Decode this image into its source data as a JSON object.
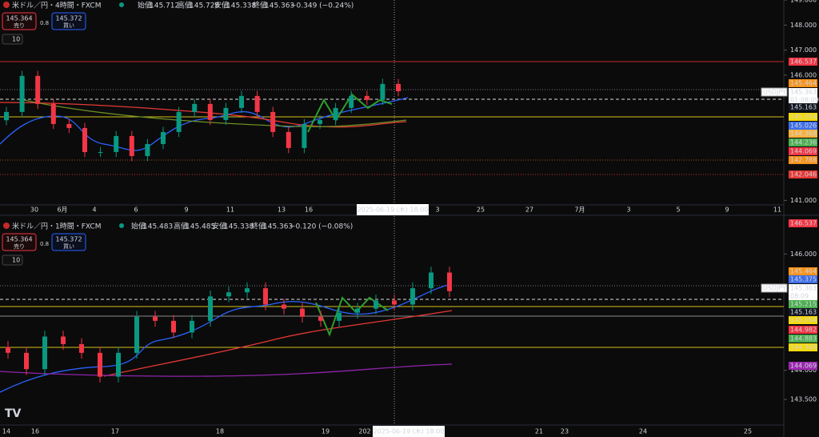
{
  "panels": [
    {
      "header": {
        "symbol": "米ドル／円・4時間・FXCM",
        "fields": [
          {
            "label": "始値",
            "value": "145.712"
          },
          {
            "label": "高値",
            "value": "145.728"
          },
          {
            "label": "安値",
            "value": "145.338"
          },
          {
            "label": "終値",
            "value": "145.363"
          }
        ],
        "change": "−0.349 (−0.24%)"
      },
      "sell": {
        "price": "145.364",
        "label": "売り"
      },
      "spread": "0.8",
      "buy": {
        "price": "145.372",
        "label": "買い"
      },
      "lots": "10",
      "ylim": [
        140.82,
        149.0
      ],
      "yticks": [
        {
          "value": 149,
          "label": "149.000"
        },
        {
          "value": 148,
          "label": "148.000"
        },
        {
          "value": 147,
          "label": "147.000"
        },
        {
          "value": 146,
          "label": "146.000"
        },
        {
          "value": 141,
          "label": "141.000"
        }
      ],
      "price_labels": [
        {
          "label": "146.537",
          "color": "#f23645"
        },
        {
          "label": "145.464",
          "color": "#f7931a"
        },
        {
          "label": "USDJPY",
          "color": "#ffffff"
        },
        {
          "label": "145.363",
          "color": "#ffffff"
        },
        {
          "label": "01:08:09",
          "color": "#ffffff"
        },
        {
          "label": "145.163",
          "color": "#131722"
        },
        {
          "label": "145.054",
          "color": "#f5d90a"
        },
        {
          "label": "145.026",
          "color": "#3d6ee8"
        },
        {
          "label": "144.368",
          "color": "#f7b23b"
        },
        {
          "label": "144.236",
          "color": "#4caf50"
        },
        {
          "label": "144.069",
          "color": "#f23645"
        },
        {
          "label": "142.788",
          "color": "#f7931a"
        },
        {
          "label": "142.046",
          "color": "#e53935"
        }
      ],
      "time_labels": [
        "30",
        "6月",
        "4",
        "6",
        "9",
        "11",
        "13",
        "16",
        "3",
        "25",
        "27",
        "7月",
        "3",
        "5",
        "9",
        "11"
      ],
      "crosshair": "2025-06-19 (木)   18:00",
      "candles": {
        "open": [
          144.2,
          144.53,
          145.97,
          144.85,
          144.05,
          143.89,
          142.93,
          142.93,
          143.57,
          142.77,
          143.25,
          143.73,
          144.53,
          144.85,
          144.21,
          144.69,
          145.17,
          144.53,
          143.73,
          143.09,
          144.05,
          144.21,
          144.69,
          145.17,
          145.01,
          145.65
        ],
        "high": [
          144.73,
          146.17,
          146.17,
          145.05,
          144.25,
          144.09,
          143.13,
          143.77,
          143.77,
          143.45,
          143.93,
          144.73,
          145.05,
          145.05,
          144.89,
          145.37,
          145.37,
          144.73,
          143.93,
          144.25,
          144.41,
          144.89,
          145.37,
          145.37,
          145.85,
          145.85
        ],
        "low": [
          144.0,
          144.33,
          144.65,
          143.85,
          143.69,
          142.73,
          142.73,
          142.73,
          142.57,
          142.57,
          143.05,
          143.53,
          144.33,
          144.01,
          144.01,
          144.49,
          144.33,
          143.53,
          142.89,
          142.89,
          143.85,
          144.01,
          144.49,
          144.81,
          144.81,
          145.16
        ],
        "close": [
          144.53,
          145.97,
          144.85,
          144.05,
          143.89,
          142.93,
          142.93,
          143.57,
          142.77,
          143.25,
          143.73,
          144.53,
          144.85,
          144.21,
          144.69,
          145.17,
          144.53,
          143.73,
          143.09,
          144.05,
          144.21,
          144.69,
          145.17,
          145.01,
          145.65,
          145.36
        ]
      }
    },
    {
      "header": {
        "symbol": "米ドル／円・1時間・FXCM",
        "fields": [
          {
            "label": "始値",
            "value": "145.483"
          },
          {
            "label": "高値",
            "value": "145.485"
          },
          {
            "label": "安値",
            "value": "145.338"
          },
          {
            "label": "終値",
            "value": "145.363"
          }
        ],
        "change": "−0.120 (−0.08%)"
      },
      "sell": {
        "price": "145.364",
        "label": "売り"
      },
      "spread": "0.8",
      "buy": {
        "price": "145.372",
        "label": "買い"
      },
      "lots": "10",
      "ylim": [
        143.06,
        146.65
      ],
      "yticks": [
        {
          "value": 146,
          "label": "146.000"
        },
        {
          "value": 144,
          "label": "144.000"
        },
        {
          "value": 143.5,
          "label": "143.500"
        }
      ],
      "price_labels": [
        {
          "label": "146.537",
          "color": "#f23645"
        },
        {
          "label": "145.464",
          "color": "#f7931a"
        },
        {
          "label": "145.375",
          "color": "#3d6ee8"
        },
        {
          "label": "USDJPY",
          "color": "#ffffff"
        },
        {
          "label": "145.363",
          "color": "#ffffff"
        },
        {
          "label": "08:09",
          "color": "#ffffff"
        },
        {
          "label": "145.215",
          "color": "#4caf50"
        },
        {
          "label": "145.163",
          "color": "#131722"
        },
        {
          "label": "145.054",
          "color": "#f5d90a"
        },
        {
          "label": "144.982",
          "color": "#f23645"
        },
        {
          "label": "144.883",
          "color": "#4caf50"
        },
        {
          "label": "144.368",
          "color": "#f5d90a"
        },
        {
          "label": "144.069",
          "color": "#9c27b0"
        }
      ],
      "time_labels": [
        "14",
        "16",
        "17",
        "18",
        "19",
        "202",
        "21",
        "23",
        "24",
        "25"
      ],
      "crosshair": "2025-06-19 (木)   18:00",
      "candles": {
        "open": [
          144.4,
          144.3,
          144.02,
          144.58,
          144.45,
          144.3,
          143.89,
          144.3,
          144.92,
          144.85,
          144.65,
          144.85,
          145.27,
          145.34,
          145.41,
          145.13,
          145.06,
          144.92,
          144.85,
          144.99,
          145.06,
          145.2,
          145.13,
          145.41,
          145.68
        ],
        "high": [
          144.5,
          144.4,
          144.68,
          144.68,
          144.55,
          144.4,
          144.4,
          145.02,
          145.02,
          144.95,
          144.95,
          145.37,
          145.44,
          145.51,
          145.51,
          145.23,
          145.16,
          145.02,
          145.09,
          145.16,
          145.3,
          145.3,
          145.51,
          145.78,
          145.78
        ],
        "low": [
          144.2,
          143.92,
          143.92,
          144.35,
          144.2,
          143.79,
          143.79,
          144.2,
          144.75,
          144.55,
          144.55,
          144.75,
          145.17,
          145.24,
          145.03,
          144.96,
          144.82,
          144.75,
          144.75,
          144.89,
          144.96,
          145.03,
          145.03,
          145.31,
          145.26
        ],
        "close": [
          144.3,
          144.02,
          144.58,
          144.45,
          144.3,
          143.89,
          144.3,
          144.92,
          144.85,
          144.65,
          144.85,
          145.27,
          145.34,
          145.41,
          145.13,
          145.06,
          144.92,
          144.85,
          144.99,
          145.06,
          145.2,
          145.13,
          145.41,
          145.68,
          145.36
        ]
      }
    }
  ]
}
